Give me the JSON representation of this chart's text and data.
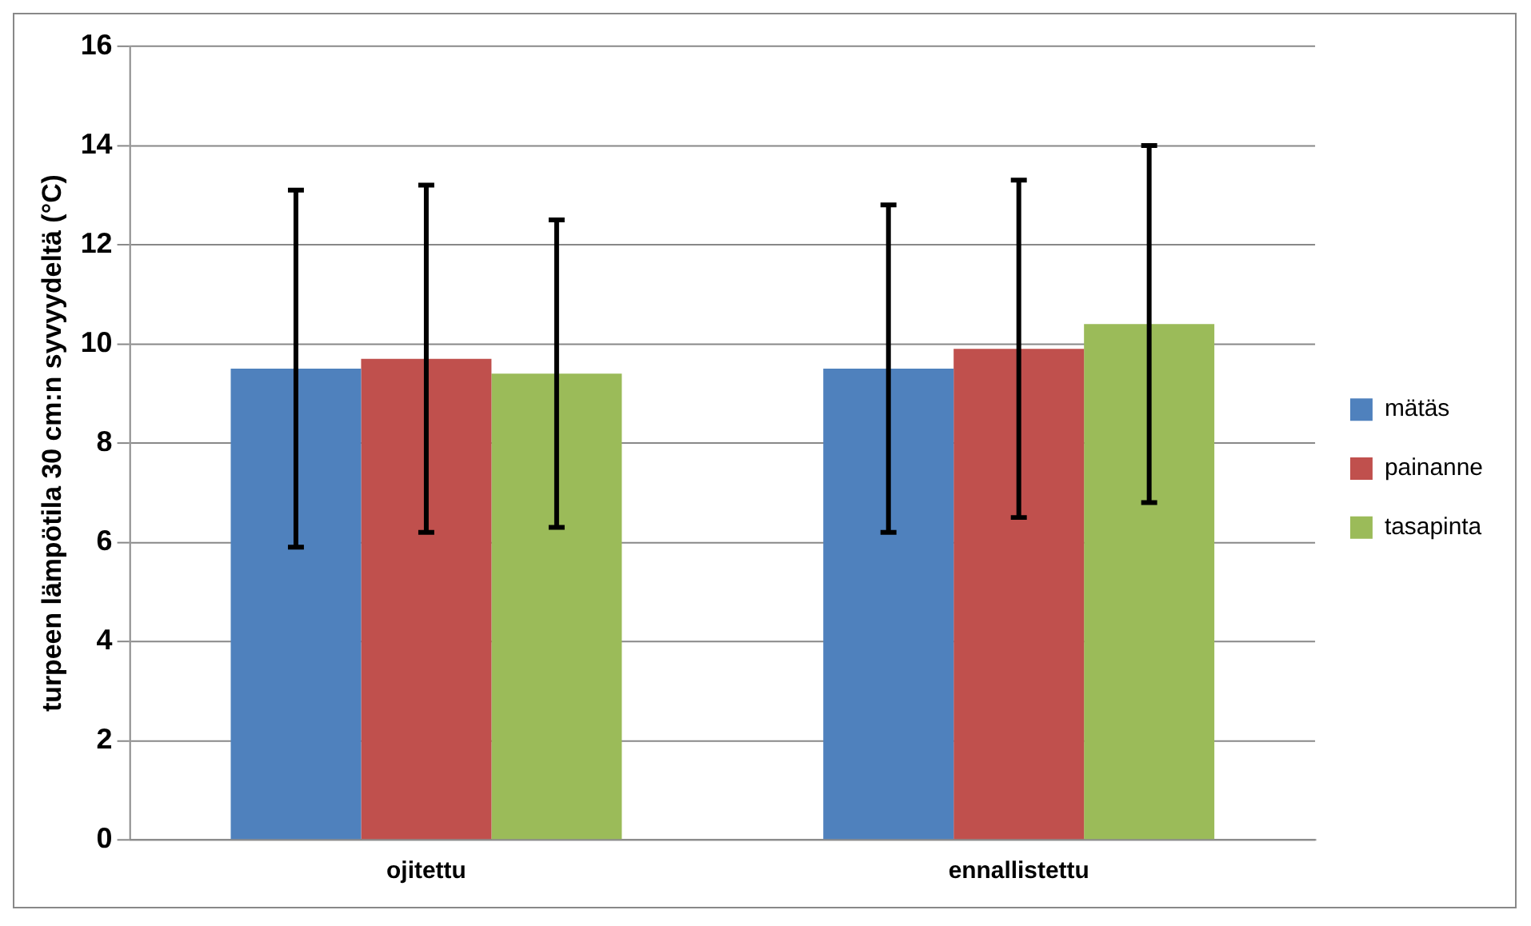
{
  "chart_data": {
    "type": "bar",
    "categories": [
      "ojitettu",
      "ennallistettu"
    ],
    "ylabel": "turpeen lämpötila 30 cm:n syvyydeltä (°C)",
    "series": [
      {
        "name": "mätäs",
        "color": "#4f81bd",
        "values": [
          9.5,
          9.5
        ],
        "errors": [
          3.6,
          3.3
        ]
      },
      {
        "name": "painanne",
        "color": "#c0504d",
        "values": [
          9.7,
          9.9
        ],
        "errors": [
          3.5,
          3.4
        ]
      },
      {
        "name": "tasapinta",
        "color": "#9bbb59",
        "values": [
          9.4,
          10.4
        ],
        "errors": [
          3.1,
          3.6
        ]
      }
    ],
    "ylim": [
      0,
      16
    ],
    "yticks": [
      0,
      2,
      4,
      6,
      8,
      10,
      12,
      14,
      16
    ],
    "grid": "y",
    "legend": "right"
  }
}
